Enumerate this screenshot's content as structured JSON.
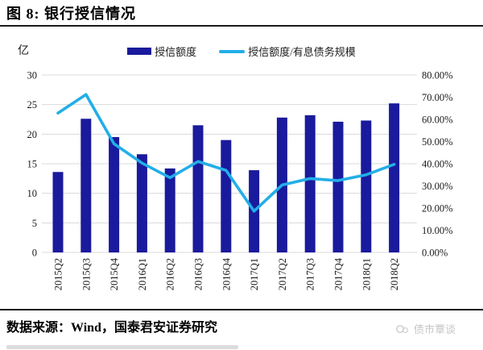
{
  "header": {
    "title": "图 8:  银行授信情况"
  },
  "chart_data": {
    "type": "combo-bar-line",
    "unit_label": "亿",
    "categories": [
      "2015Q2",
      "2015Q3",
      "2015Q4",
      "2016Q1",
      "2016Q2",
      "2016Q3",
      "2016Q4",
      "2017Q1",
      "2017Q2",
      "2017Q3",
      "2017Q4",
      "2018Q1",
      "2018Q2"
    ],
    "series": [
      {
        "name": "授信额度",
        "type": "bar",
        "axis": "left",
        "color": "#1A1A9C",
        "values": [
          13.6,
          22.6,
          19.5,
          16.6,
          14.2,
          21.5,
          19.0,
          13.9,
          22.8,
          23.2,
          22.1,
          22.3,
          25.2
        ]
      },
      {
        "name": "授信额度/有息债务规模",
        "type": "line",
        "axis": "right",
        "color": "#22AEE8",
        "values_percent": [
          62.8,
          71.2,
          49.0,
          40.3,
          33.7,
          41.0,
          37.0,
          18.6,
          30.4,
          33.3,
          32.4,
          35.0,
          39.7
        ]
      }
    ],
    "left_axis": {
      "min": 0,
      "max": 30,
      "ticks": [
        30,
        25,
        20,
        15,
        10,
        5,
        0
      ]
    },
    "right_axis": {
      "min": 0,
      "max": 80,
      "tick_labels": [
        "80.00%",
        "70.00%",
        "60.00%",
        "50.00%",
        "40.00%",
        "30.00%",
        "20.00%",
        "10.00%",
        "0.00%"
      ]
    },
    "grid": true,
    "legend_position": "top",
    "gridline_color": "#d9d9d9"
  },
  "footer": {
    "source": "数据来源：Wind，国泰君安证券研究",
    "watermark": "债市覃谈"
  }
}
